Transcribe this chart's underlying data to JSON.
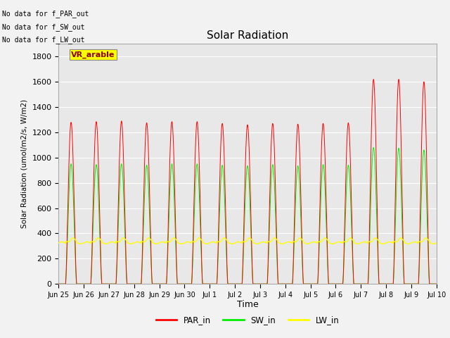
{
  "title": "Solar Radiation",
  "ylabel": "Solar Radiation (umol/m2/s, W/m2)",
  "xlabel": "Time",
  "ylim": [
    0,
    1900
  ],
  "yticks": [
    0,
    200,
    400,
    600,
    800,
    1000,
    1200,
    1400,
    1600,
    1800
  ],
  "plot_bg_color": "#e8e8e8",
  "fig_bg_color": "#f2f2f2",
  "annotations": [
    "No data for f_PAR_out",
    "No data for f_SW_out",
    "No data for f_LW_out"
  ],
  "vr_label": "VR_arable",
  "num_days": 15,
  "par_in_peaks": [
    1280,
    1285,
    1290,
    1275,
    1285,
    1285,
    1270,
    1260,
    1270,
    1265,
    1270,
    1275,
    1620,
    1620,
    1600
  ],
  "sw_in_peaks": [
    950,
    945,
    950,
    940,
    950,
    950,
    940,
    935,
    945,
    935,
    945,
    940,
    1080,
    1075,
    1060
  ],
  "lw_base": 345,
  "x_tick_labels": [
    "Jun 25",
    "Jun 26",
    "Jun 27",
    "Jun 28",
    "Jun 29",
    "Jun 30",
    "Jul 1",
    "Jul 2",
    "Jul 3",
    "Jul 4",
    "Jul 5",
    "Jul 6",
    "Jul 7",
    "Jul 8",
    "Jul 9",
    "Jul 10"
  ]
}
